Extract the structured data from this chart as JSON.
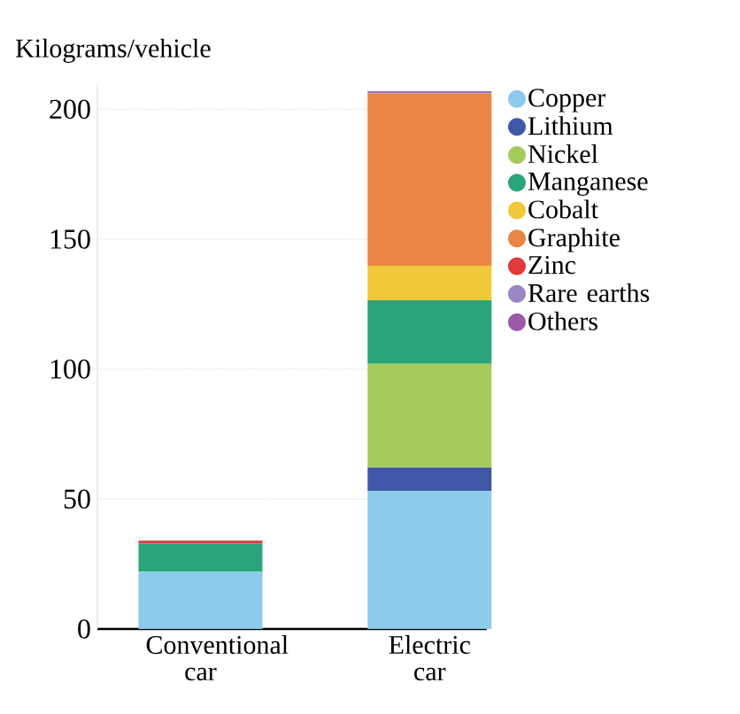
{
  "chart_data": {
    "type": "bar",
    "stacked": true,
    "ylabel": "Kilograms/vehicle",
    "categories": [
      "Conventional car",
      "Electric car"
    ],
    "series": [
      {
        "name": "Copper",
        "color": "#8ccbea",
        "values": [
          22,
          53.2
        ]
      },
      {
        "name": "Lithium",
        "color": "#3f57a6",
        "values": [
          null,
          8.9
        ]
      },
      {
        "name": "Nickel",
        "color": "#a5cc5b",
        "values": [
          null,
          39.9
        ]
      },
      {
        "name": "Manganese",
        "color": "#2aa57a",
        "values": [
          11,
          24.5
        ]
      },
      {
        "name": "Cobalt",
        "color": "#f0c93a",
        "values": [
          null,
          13.3
        ]
      },
      {
        "name": "Graphite",
        "color": "#ea8443",
        "values": [
          null,
          66.3
        ]
      },
      {
        "name": "Zinc",
        "color": "#e03a3a",
        "values": [
          1,
          null
        ]
      },
      {
        "name": "Rare earths",
        "color": "#9a86c4",
        "values": [
          null,
          0.5
        ]
      },
      {
        "name": "Others",
        "color": "#9b59a8",
        "values": [
          null,
          0.3
        ]
      }
    ],
    "ylim": [
      0,
      210
    ],
    "yticks": [
      0,
      50,
      100,
      150,
      200
    ],
    "grid": "y",
    "legend": "right"
  }
}
